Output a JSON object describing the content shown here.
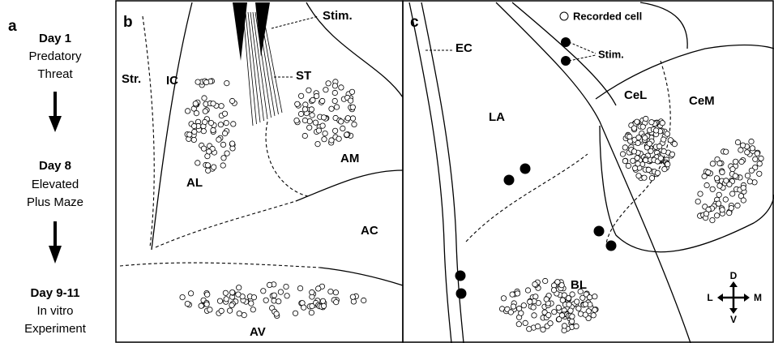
{
  "panel_a": {
    "label": "a",
    "steps": [
      {
        "day": "Day 1",
        "lines": [
          "Predatory",
          "Threat"
        ]
      },
      {
        "day": "Day 8",
        "lines": [
          "Elevated",
          "Plus Maze"
        ]
      },
      {
        "day": "Day 9-11",
        "lines": [
          "In vitro",
          "Experiment"
        ]
      }
    ]
  },
  "panel_b": {
    "label": "b",
    "stim": "Stim.",
    "regions": {
      "str": "Str.",
      "ic": "IC",
      "st": "ST",
      "al": "AL",
      "am": "AM",
      "ac": "AC",
      "av": "AV"
    }
  },
  "panel_c": {
    "label": "c",
    "legend": "Recorded cell",
    "stim": "Stim.",
    "regions": {
      "ec": "EC",
      "la": "LA",
      "cel": "CeL",
      "cem": "CeM",
      "bl": "BL"
    },
    "compass": {
      "d": "D",
      "v": "V",
      "l": "L",
      "m": "M"
    }
  }
}
